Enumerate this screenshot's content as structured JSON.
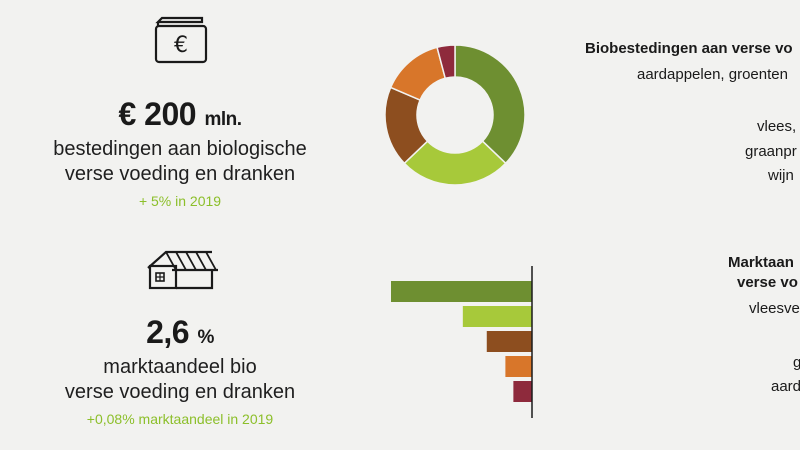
{
  "stat1": {
    "icon": "wallet-euro-icon",
    "value": "€ 200",
    "unit": "mln.",
    "line1": "bestedingen aan biologische",
    "line2": "verse voeding en dranken",
    "change": "+ 5% in 2019"
  },
  "stat2": {
    "icon": "shop-icon",
    "value": "2,6",
    "unit": "%",
    "line1": "marktaandeel bio",
    "line2": "verse voeding en dranken",
    "change": "+0,08% marktaandeel in 2019"
  },
  "right_top": {
    "title": "Biobestedingen aan verse vo",
    "labels": [
      "aardappelen, groenten",
      "vlees,",
      "graanpr",
      "wijn"
    ]
  },
  "right_bottom": {
    "title_line1": "Marktaan",
    "title_line2": "verse vo",
    "labels": [
      "vleesve",
      "g",
      "aard"
    ]
  },
  "chart_data": [
    {
      "type": "pie",
      "donut": true,
      "values": [
        36,
        25,
        18,
        14,
        4
      ],
      "colors": [
        "#6e8f31",
        "#a7c93a",
        "#8d4e1f",
        "#d8762a",
        "#8e2a3c"
      ]
    },
    {
      "type": "bar",
      "orientation": "horizontal",
      "values": [
        5.3,
        2.6,
        1.7,
        1.0,
        0.7
      ],
      "colors": [
        "#6e8f31",
        "#a7c93a",
        "#8d4e1f",
        "#d8762a",
        "#8e2a3c"
      ]
    }
  ],
  "colors": {
    "accent": "#8cbf2a",
    "background": "#f2f2f0"
  }
}
